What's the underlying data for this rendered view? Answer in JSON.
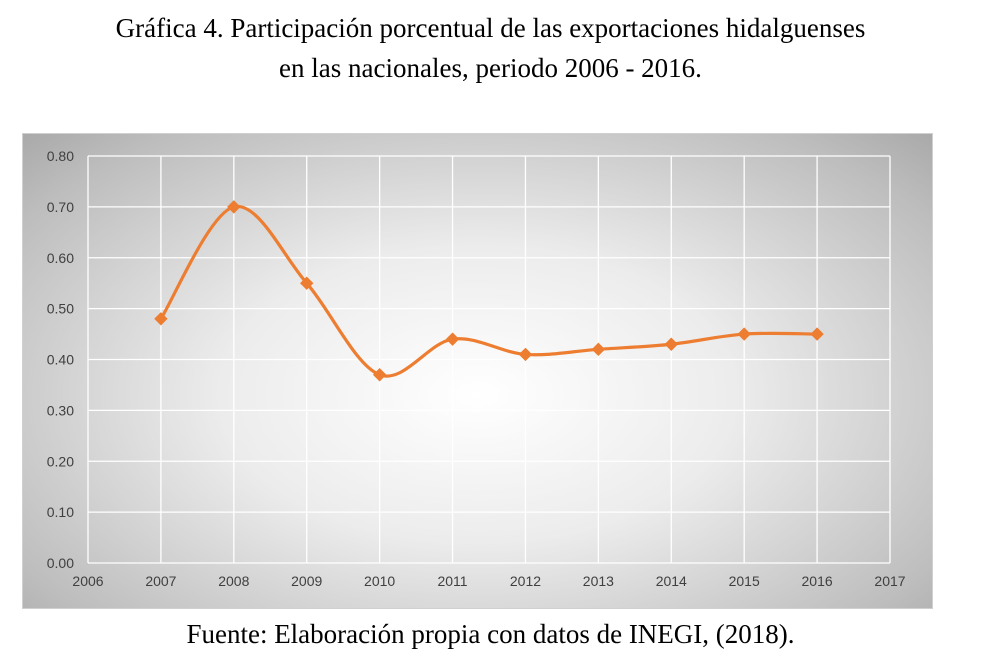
{
  "chart_data": {
    "type": "line",
    "title_lines": [
      "Gráfica 4. Participación porcentual de las exportaciones hidalguenses",
      "en las nacionales, periodo 2006 - 2016."
    ],
    "source": "Fuente: Elaboración propia con datos de INEGI, (2018).",
    "xlabel": "",
    "ylabel": "",
    "x_ticks": [
      "2006",
      "2007",
      "2008",
      "2009",
      "2010",
      "2011",
      "2012",
      "2013",
      "2014",
      "2015",
      "2016",
      "2017"
    ],
    "y_ticks": [
      "0.00",
      "0.10",
      "0.20",
      "0.30",
      "0.40",
      "0.50",
      "0.60",
      "0.70",
      "0.80"
    ],
    "xlim": [
      2006,
      2017
    ],
    "ylim": [
      0,
      0.8
    ],
    "grid": true,
    "smooth": true,
    "series": [
      {
        "color": "#ed7d31",
        "marker": "diamond",
        "x": [
          2007,
          2008,
          2009,
          2010,
          2011,
          2012,
          2013,
          2014,
          2015,
          2016
        ],
        "values": [
          0.48,
          0.7,
          0.55,
          0.37,
          0.44,
          0.41,
          0.42,
          0.43,
          0.45,
          0.45
        ]
      }
    ]
  }
}
